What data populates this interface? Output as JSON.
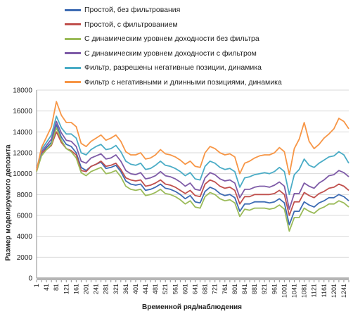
{
  "chart_data": {
    "type": "line",
    "title": "",
    "xlabel": "Временной ряд/наблюдения",
    "ylabel": "Размер моделируемого депозита",
    "ylim": [
      0,
      18000
    ],
    "yticks": [
      0,
      2000,
      4000,
      6000,
      8000,
      10000,
      12000,
      14000,
      16000,
      18000
    ],
    "x_tick_labels": [
      "1",
      "41",
      "81",
      "121",
      "161",
      "201",
      "241",
      "281",
      "321",
      "361",
      "401",
      "441",
      "481",
      "521",
      "561",
      "601",
      "641",
      "681",
      "721",
      "761",
      "801",
      "841",
      "881",
      "921",
      "961",
      "1001",
      "1041",
      "1081",
      "1121",
      "1161",
      "1201",
      "1241"
    ],
    "x": [
      1,
      21,
      41,
      61,
      81,
      101,
      121,
      141,
      161,
      181,
      201,
      221,
      241,
      261,
      281,
      301,
      321,
      341,
      361,
      381,
      401,
      421,
      441,
      461,
      481,
      501,
      521,
      541,
      561,
      581,
      601,
      621,
      641,
      661,
      681,
      701,
      721,
      741,
      761,
      781,
      801,
      821,
      841,
      861,
      881,
      901,
      921,
      941,
      961,
      981,
      1001,
      1021,
      1041,
      1061,
      1081,
      1101,
      1121,
      1141,
      1161,
      1181,
      1201,
      1221,
      1241,
      1261
    ],
    "grid": true,
    "legend_position": "top",
    "series": [
      {
        "name": "Простой, без фильтрования",
        "color": "#3d6bb3",
        "values": [
          10300,
          11900,
          12500,
          13000,
          14700,
          13500,
          12800,
          12600,
          12000,
          10600,
          10300,
          10700,
          10900,
          11100,
          10500,
          10600,
          10800,
          10200,
          9300,
          9000,
          8900,
          9000,
          8400,
          8500,
          8700,
          9000,
          8600,
          8500,
          8300,
          8000,
          7600,
          7900,
          7300,
          7200,
          8300,
          8700,
          8500,
          8100,
          7900,
          8000,
          7700,
          6400,
          7100,
          7100,
          7300,
          7300,
          7300,
          7200,
          7300,
          7600,
          7200,
          5100,
          6400,
          6400,
          7300,
          7000,
          6800,
          7200,
          7400,
          7700,
          7700,
          8000,
          7800,
          7400
        ]
      },
      {
        "name": "Простой, с фильтрованием",
        "color": "#c0504d",
        "values": [
          10500,
          12000,
          12300,
          12700,
          14000,
          13000,
          12400,
          12200,
          11800,
          10300,
          10200,
          10700,
          10900,
          11200,
          10700,
          10800,
          11000,
          10400,
          9600,
          9400,
          9300,
          9400,
          8800,
          8900,
          9100,
          9400,
          9000,
          8900,
          8700,
          8400,
          8100,
          8400,
          7900,
          7800,
          9000,
          9400,
          9200,
          8800,
          8600,
          8700,
          8400,
          7100,
          7800,
          7800,
          8000,
          8000,
          8000,
          8000,
          8100,
          8400,
          8000,
          6000,
          7300,
          7300,
          8200,
          7900,
          7700,
          8100,
          8300,
          8600,
          8700,
          9000,
          8800,
          8400
        ]
      },
      {
        "name": "С динамическим уровнем доходности без фильтра",
        "color": "#9bbb59",
        "values": [
          10200,
          11700,
          12300,
          12800,
          14400,
          13200,
          12400,
          12100,
          11500,
          10100,
          9800,
          10200,
          10400,
          10600,
          10000,
          10100,
          10300,
          9700,
          8800,
          8500,
          8400,
          8500,
          7900,
          8000,
          8200,
          8500,
          8100,
          8000,
          7800,
          7500,
          7100,
          7400,
          6800,
          6700,
          7800,
          8200,
          8000,
          7600,
          7400,
          7500,
          7200,
          5900,
          6600,
          6500,
          6700,
          6700,
          6700,
          6600,
          6700,
          7000,
          6600,
          4500,
          5800,
          5800,
          6700,
          6400,
          6200,
          6600,
          6800,
          7100,
          7100,
          7400,
          7200,
          6800
        ]
      },
      {
        "name": "С динамическим уровнем доходности с фильтром",
        "color": "#7e5ba7",
        "values": [
          10400,
          12100,
          12700,
          13300,
          15000,
          13900,
          13200,
          13100,
          12600,
          11200,
          11000,
          11500,
          11700,
          11900,
          11400,
          11500,
          11800,
          11200,
          10300,
          10000,
          9900,
          10100,
          9500,
          9600,
          9800,
          10200,
          9800,
          9700,
          9500,
          9200,
          8800,
          9100,
          8500,
          8400,
          9600,
          10100,
          9900,
          9500,
          9300,
          9400,
          9100,
          7700,
          8500,
          8500,
          8700,
          8800,
          8800,
          8700,
          8900,
          9200,
          8800,
          6600,
          8100,
          8100,
          9100,
          8800,
          8600,
          9100,
          9400,
          9800,
          9900,
          10300,
          10100,
          9700
        ]
      },
      {
        "name": "Фильтр, разрешены негативные позиции, динамика",
        "color": "#4aacc6",
        "values": [
          10300,
          12300,
          13000,
          13700,
          15500,
          14400,
          13800,
          13800,
          13400,
          12000,
          11800,
          12300,
          12600,
          12800,
          12300,
          12400,
          12700,
          12100,
          11200,
          10900,
          10800,
          11000,
          10400,
          10500,
          10800,
          11200,
          10800,
          10700,
          10500,
          10200,
          9800,
          10100,
          9500,
          9400,
          10700,
          11200,
          11000,
          10600,
          10400,
          10500,
          10200,
          8700,
          9600,
          9700,
          9900,
          10000,
          10100,
          10000,
          10200,
          10600,
          10200,
          8000,
          9900,
          10400,
          11400,
          10800,
          10600,
          11000,
          11300,
          11600,
          11700,
          12100,
          11800,
          11000
        ]
      },
      {
        "name": "Фильтр с негативными и длинными позициями, динамика",
        "color": "#f79646",
        "values": [
          10300,
          12500,
          13500,
          14500,
          16900,
          15600,
          14900,
          14900,
          14500,
          12900,
          12600,
          13100,
          13400,
          13700,
          13200,
          13400,
          13700,
          13100,
          12100,
          11800,
          11800,
          12000,
          11400,
          11500,
          11800,
          12300,
          11900,
          11800,
          11600,
          11300,
          10900,
          11200,
          10700,
          10600,
          12000,
          12600,
          12400,
          12000,
          11800,
          11900,
          11600,
          10000,
          11000,
          11200,
          11500,
          11700,
          11800,
          11800,
          12000,
          12500,
          12100,
          9900,
          12400,
          13300,
          14900,
          13100,
          12400,
          12800,
          13400,
          13800,
          14300,
          15300,
          15000,
          14300
        ]
      }
    ]
  }
}
